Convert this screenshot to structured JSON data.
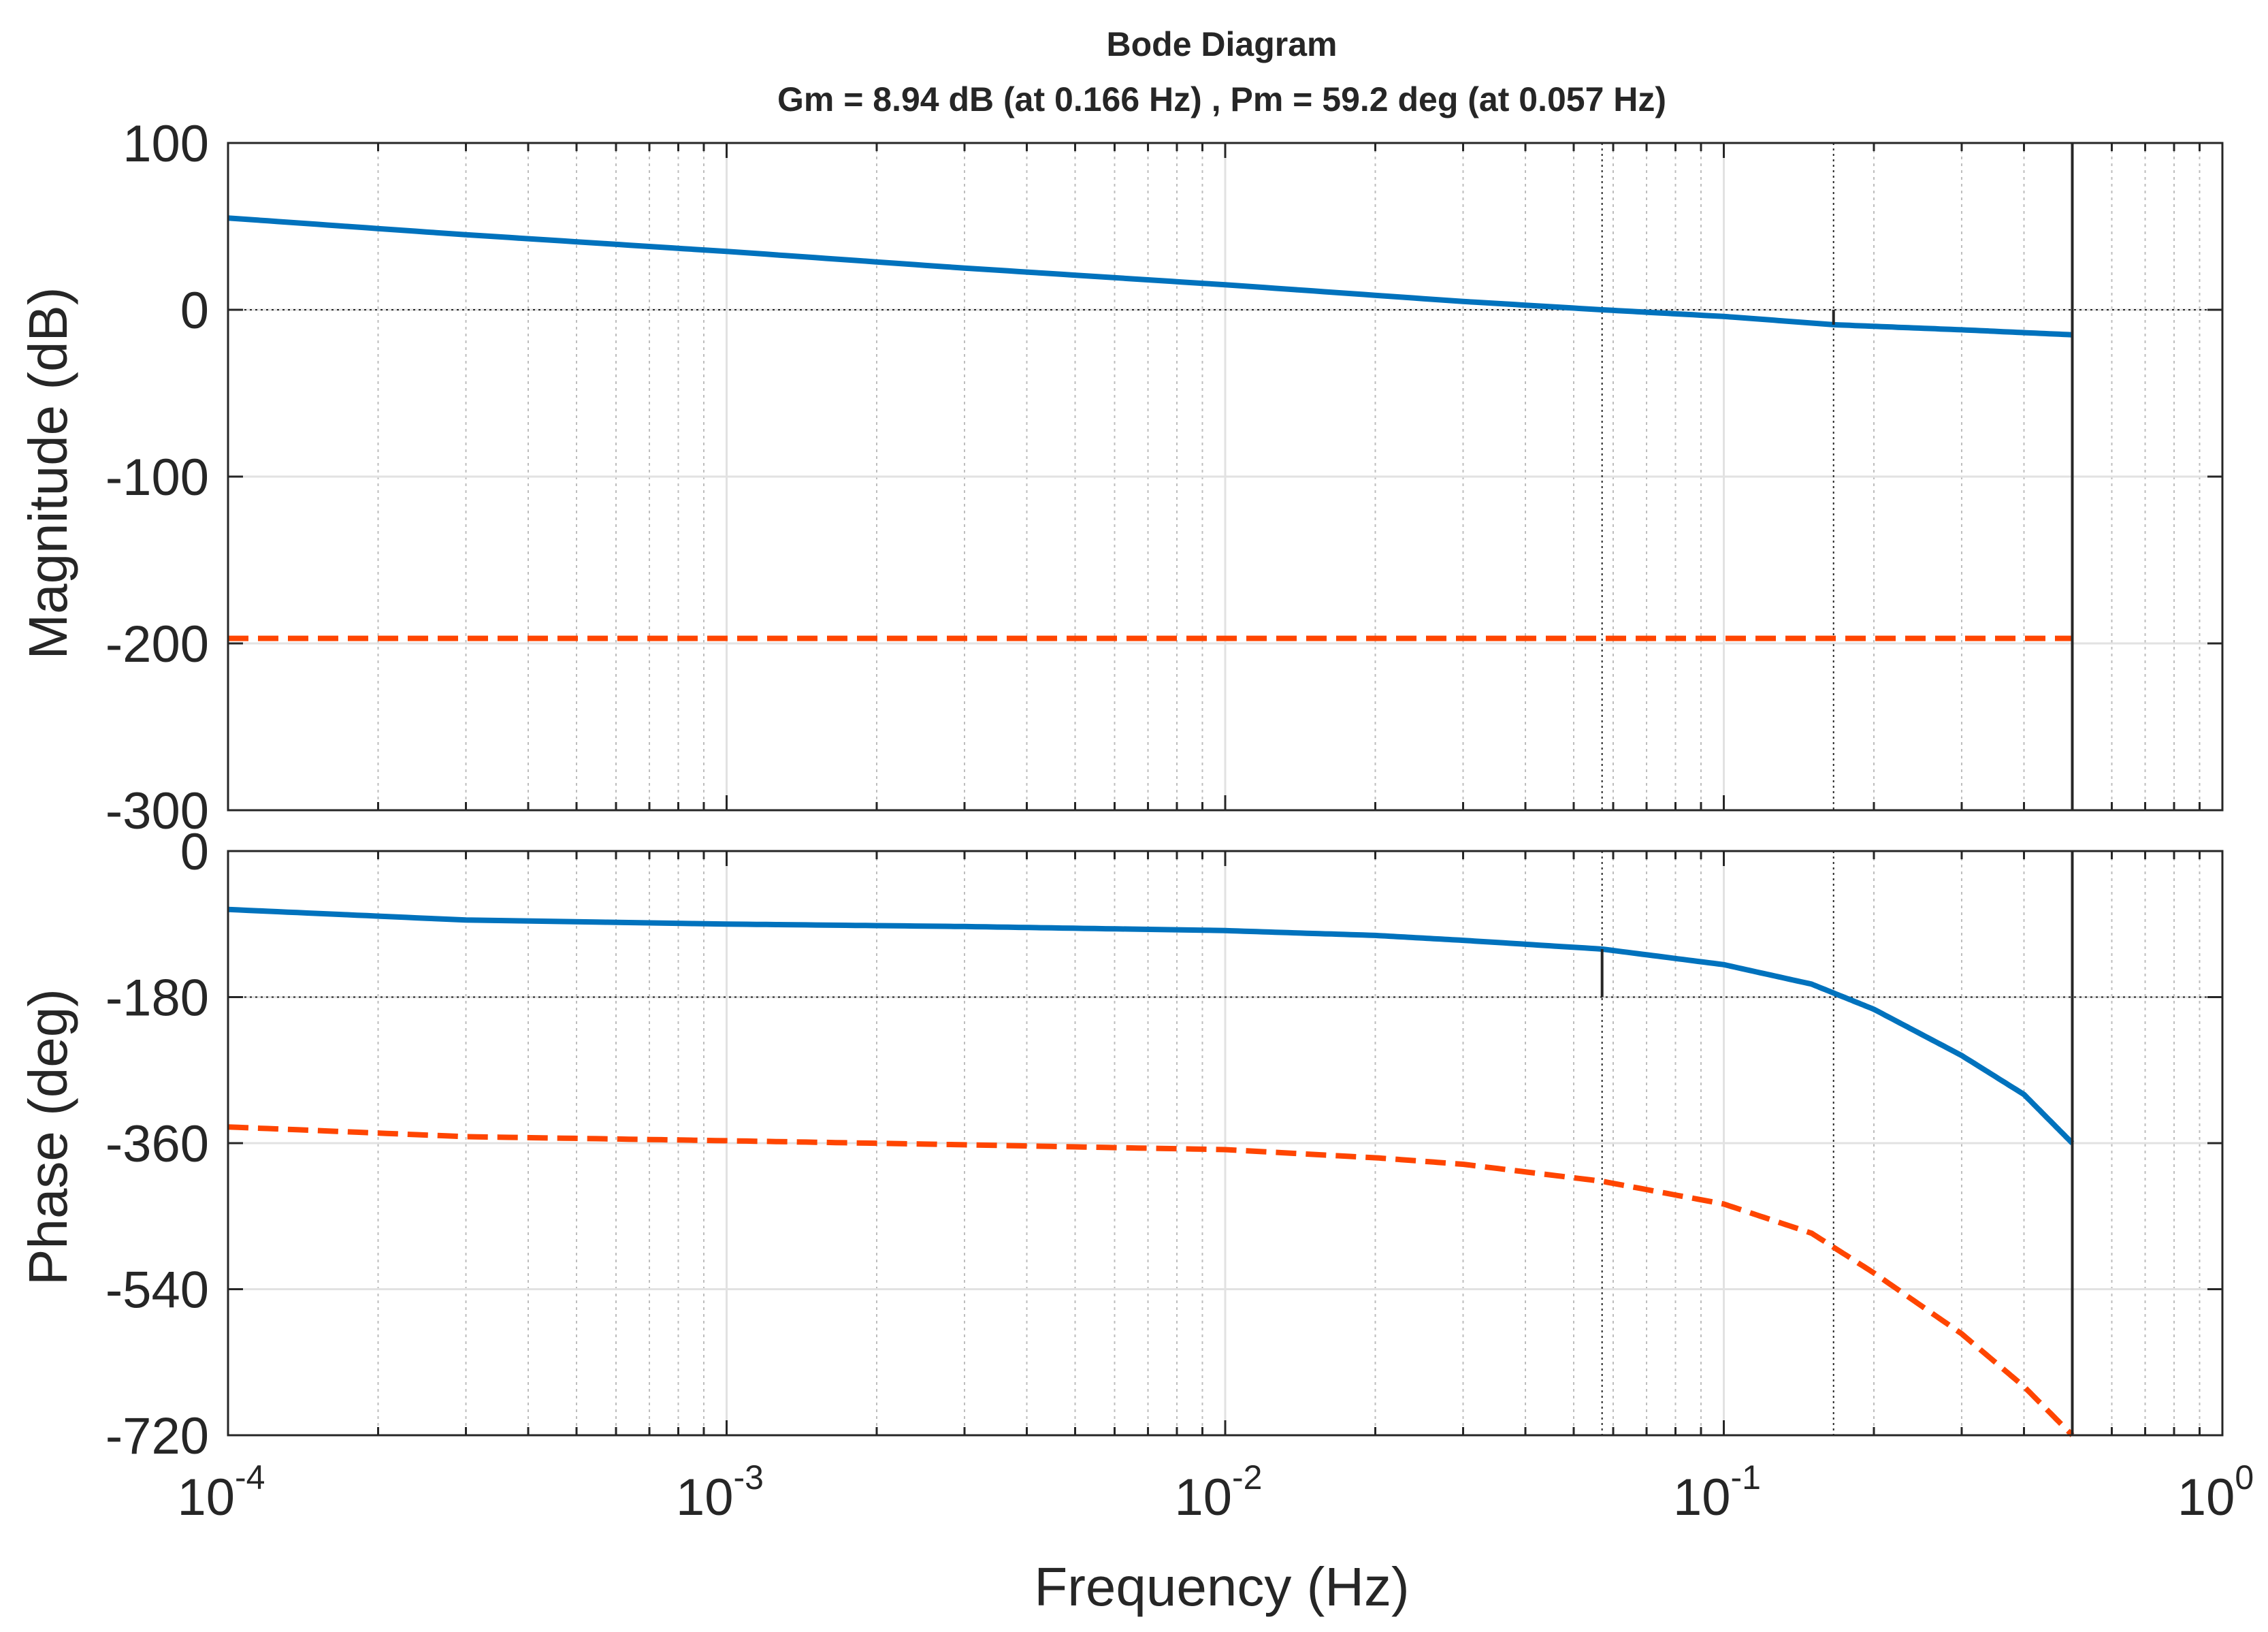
{
  "chart_data": {
    "type": "line",
    "title": "Bode Diagram",
    "subtitle": "Gm = 8.94 dB (at 0.166 Hz) ,  Pm = 59.2 deg (at 0.057 Hz)",
    "xlabel": "Frequency (Hz)",
    "xscale": "log",
    "xlim": [
      0.0001,
      1
    ],
    "x_tick_labels": [
      {
        "base": "10",
        "exp": "-4"
      },
      {
        "base": "10",
        "exp": "-3"
      },
      {
        "base": "10",
        "exp": "-2"
      },
      {
        "base": "10",
        "exp": "-1"
      },
      {
        "base": "10",
        "exp": "0"
      }
    ],
    "nyquist_frequency_hz": 0.5,
    "grid": true,
    "margins": {
      "gain_margin_db": 8.94,
      "gain_crossover_hz": 0.166,
      "phase_margin_deg": 59.2,
      "phase_crossover_hz": 0.057
    },
    "series_styles": [
      {
        "index": 0,
        "color": "#0072BD",
        "line": "solid"
      },
      {
        "index": 1,
        "color": "#FF4500",
        "line": "dashed"
      }
    ],
    "panels": [
      {
        "name": "magnitude",
        "ylabel": "Magnitude (dB)",
        "ylim": [
          -300,
          100
        ],
        "y_ticks": [
          100,
          0,
          -100,
          -200,
          -300
        ],
        "y_tick_labels": [
          "100",
          "0",
          "-100",
          "-200",
          "-300"
        ],
        "reference_y": 0,
        "series": [
          {
            "x": [
              0.0001,
              0.0003,
              0.001,
              0.003,
              0.01,
              0.03,
              0.057,
              0.1,
              0.166,
              0.3,
              0.5
            ],
            "y": [
              55,
              45,
              35,
              25,
              15,
              5,
              0,
              -4,
              -8.94,
              -12,
              -15
            ]
          },
          {
            "x": [
              0.0001,
              0.5
            ],
            "y": [
              -197,
              -197
            ]
          }
        ]
      },
      {
        "name": "phase",
        "ylabel": "Phase (deg)",
        "ylim": [
          -720,
          0
        ],
        "y_ticks": [
          0,
          -180,
          -360,
          -540,
          -720
        ],
        "y_tick_labels": [
          "0",
          "-180",
          "-360",
          "-540",
          "-720"
        ],
        "reference_y": -180,
        "series": [
          {
            "x": [
              0.0001,
              0.0003,
              0.001,
              0.003,
              0.01,
              0.02,
              0.03,
              0.057,
              0.1,
              0.15,
              0.2,
              0.3,
              0.4,
              0.5
            ],
            "y": [
              -72,
              -85,
              -90,
              -93,
              -98,
              -104,
              -110,
              -120.8,
              -140,
              -164,
              -195,
              -252,
              -300,
              -360
            ]
          },
          {
            "x": [
              0.0001,
              0.0003,
              0.001,
              0.003,
              0.01,
              0.02,
              0.03,
              0.057,
              0.1,
              0.15,
              0.2,
              0.3,
              0.4,
              0.5
            ],
            "y": [
              -340,
              -352,
              -357,
              -362,
              -368,
              -378,
              -386,
              -407,
              -435,
              -471,
              -520,
              -595,
              -660,
              -720
            ]
          }
        ]
      }
    ]
  }
}
